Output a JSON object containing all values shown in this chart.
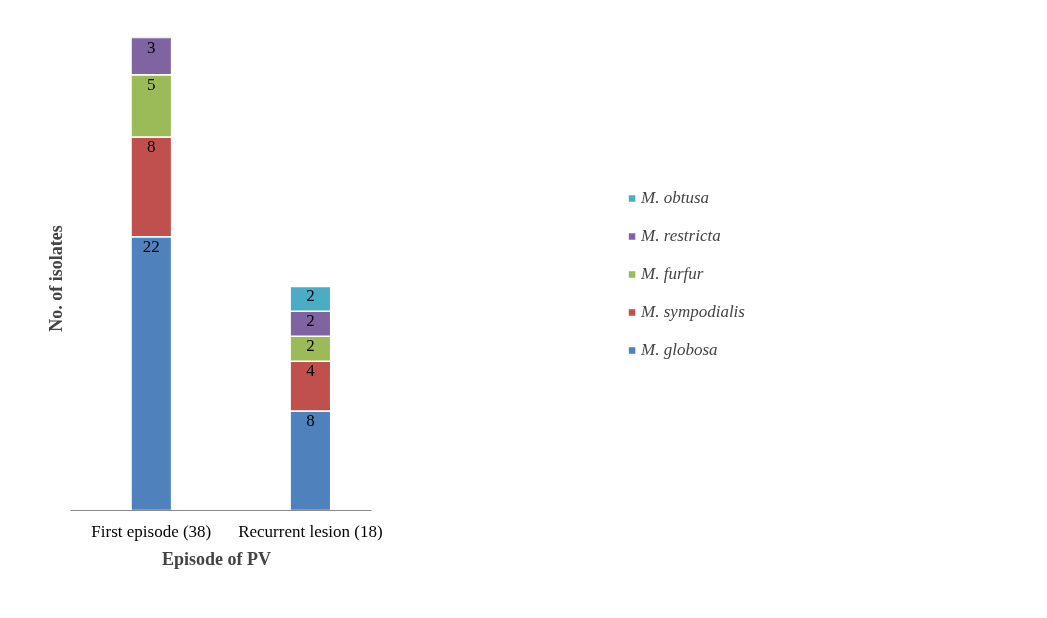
{
  "chart_data": {
    "type": "bar",
    "stacked": true,
    "data_labels": true,
    "tick_labels": "x",
    "xlabel": "Episode  of  PV",
    "ylabel": "No.  of  isolates",
    "categories": [
      "First episode (38)",
      "Recurrent lesion (18)"
    ],
    "series": [
      {
        "name": "M. globosa",
        "color": "#4f81bd",
        "values": [
          22,
          8
        ]
      },
      {
        "name": "M. sympodialis",
        "color": "#c0504d",
        "values": [
          8,
          4
        ]
      },
      {
        "name": "M. furfur",
        "color": "#9bbb59",
        "values": [
          5,
          2
        ]
      },
      {
        "name": "M. restricta",
        "color": "#8064a2",
        "values": [
          3,
          2
        ]
      },
      {
        "name": "M. obtusa",
        "color": "#4bacc6",
        "values": [
          null,
          2
        ]
      }
    ],
    "legend": "right",
    "grid": false
  }
}
